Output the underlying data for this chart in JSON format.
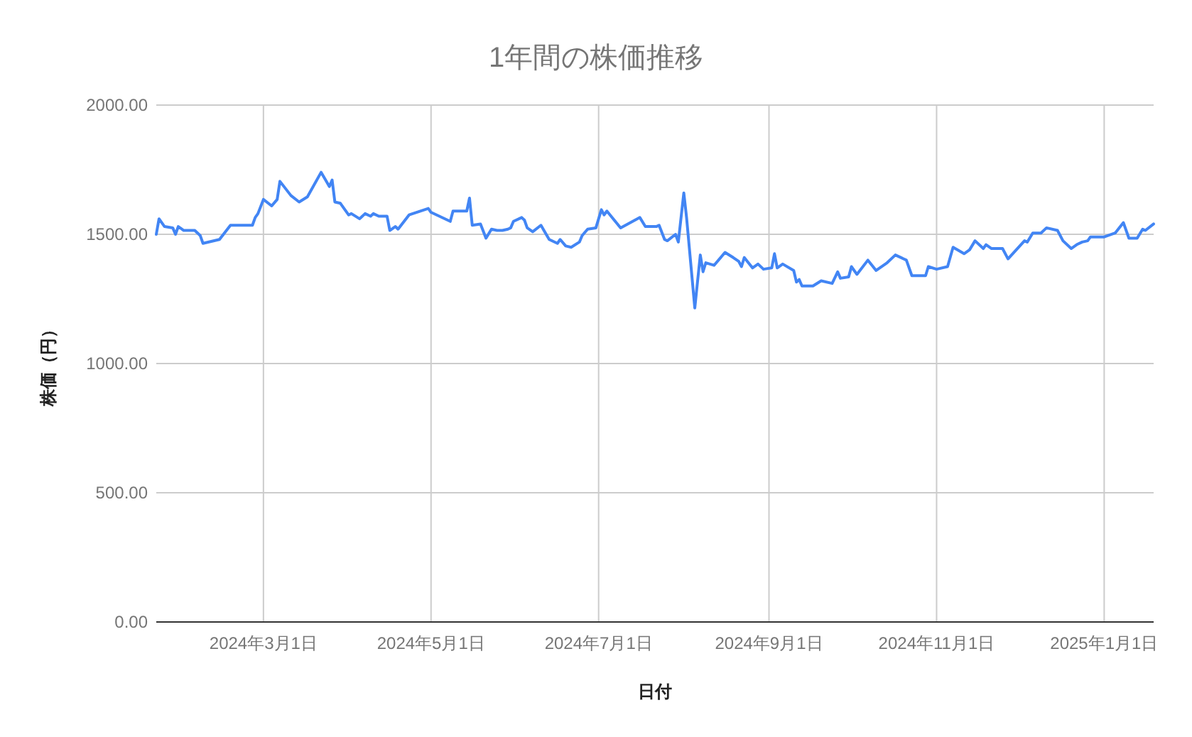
{
  "chart_data": {
    "type": "line",
    "title": "1年間の株価推移",
    "xlabel": "日付",
    "ylabel": "株価（円）",
    "x": [
      "2024-01-22",
      "2024-01-23",
      "2024-01-25",
      "2024-01-28",
      "2024-01-29",
      "2024-01-30",
      "2024-02-01",
      "2024-02-05",
      "2024-02-07",
      "2024-02-08",
      "2024-02-14",
      "2024-02-18",
      "2024-02-19",
      "2024-02-26",
      "2024-02-27",
      "2024-02-28",
      "2024-03-01",
      "2024-03-04",
      "2024-03-06",
      "2024-03-07",
      "2024-03-11",
      "2024-03-14",
      "2024-03-17",
      "2024-03-22",
      "2024-03-25",
      "2024-03-26",
      "2024-03-27",
      "2024-03-29",
      "2024-04-01",
      "2024-04-02",
      "2024-04-05",
      "2024-04-07",
      "2024-04-09",
      "2024-04-10",
      "2024-04-12",
      "2024-04-15",
      "2024-04-16",
      "2024-04-18",
      "2024-04-19",
      "2024-04-23",
      "2024-04-30",
      "2024-05-01",
      "2024-05-08",
      "2024-05-09",
      "2024-05-14",
      "2024-05-15",
      "2024-05-16",
      "2024-05-19",
      "2024-05-21",
      "2024-05-23",
      "2024-05-25",
      "2024-05-27",
      "2024-05-29",
      "2024-05-30",
      "2024-05-31",
      "2024-06-03",
      "2024-06-04",
      "2024-06-05",
      "2024-06-07",
      "2024-06-10",
      "2024-06-13",
      "2024-06-16",
      "2024-06-17",
      "2024-06-19",
      "2024-06-21",
      "2024-06-24",
      "2024-06-25",
      "2024-06-27",
      "2024-06-30",
      "2024-07-02",
      "2024-07-03",
      "2024-07-04",
      "2024-07-09",
      "2024-07-16",
      "2024-07-18",
      "2024-07-22",
      "2024-07-23",
      "2024-07-25",
      "2024-07-26",
      "2024-07-29",
      "2024-07-30",
      "2024-08-01",
      "2024-08-02",
      "2024-08-05",
      "2024-08-07",
      "2024-08-08",
      "2024-08-09",
      "2024-08-12",
      "2024-08-16",
      "2024-08-19",
      "2024-08-21",
      "2024-08-22",
      "2024-08-23",
      "2024-08-26",
      "2024-08-28",
      "2024-08-30",
      "2024-09-02",
      "2024-09-03",
      "2024-09-04",
      "2024-09-06",
      "2024-09-10",
      "2024-09-11",
      "2024-09-12",
      "2024-09-13",
      "2024-09-17",
      "2024-09-20",
      "2024-09-24",
      "2024-09-26",
      "2024-09-27",
      "2024-09-30",
      "2024-10-01",
      "2024-10-03",
      "2024-10-07",
      "2024-10-10",
      "2024-10-14",
      "2024-10-17",
      "2024-10-21",
      "2024-10-23",
      "2024-10-28",
      "2024-10-29",
      "2024-11-01",
      "2024-11-05",
      "2024-11-07",
      "2024-11-11",
      "2024-11-13",
      "2024-11-15",
      "2024-11-18",
      "2024-11-19",
      "2024-11-21",
      "2024-11-25",
      "2024-11-27",
      "2024-12-03",
      "2024-12-04",
      "2024-12-06",
      "2024-12-09",
      "2024-12-11",
      "2024-12-15",
      "2024-12-17",
      "2024-12-20",
      "2024-12-22",
      "2024-12-24",
      "2024-12-26",
      "2024-12-27",
      "2025-01-01",
      "2025-01-05",
      "2025-01-08",
      "2025-01-10",
      "2025-01-13",
      "2025-01-15",
      "2025-01-16",
      "2025-01-19"
    ],
    "series": [
      {
        "color": "#4285f4",
        "values": [
          1500,
          1560,
          1530,
          1525,
          1500,
          1530,
          1515,
          1515,
          1495,
          1465,
          1480,
          1535,
          1535,
          1535,
          1565,
          1580,
          1635,
          1610,
          1635,
          1705,
          1650,
          1625,
          1645,
          1740,
          1685,
          1710,
          1625,
          1620,
          1575,
          1580,
          1560,
          1580,
          1570,
          1580,
          1570,
          1570,
          1515,
          1530,
          1520,
          1575,
          1600,
          1585,
          1550,
          1590,
          1590,
          1640,
          1535,
          1540,
          1485,
          1520,
          1515,
          1515,
          1520,
          1525,
          1550,
          1565,
          1555,
          1525,
          1510,
          1535,
          1480,
          1465,
          1480,
          1455,
          1450,
          1470,
          1495,
          1520,
          1525,
          1595,
          1575,
          1590,
          1525,
          1565,
          1530,
          1530,
          1535,
          1480,
          1475,
          1500,
          1470,
          1660,
          1565,
          1215,
          1420,
          1355,
          1390,
          1380,
          1430,
          1410,
          1395,
          1375,
          1410,
          1370,
          1385,
          1365,
          1370,
          1425,
          1370,
          1385,
          1360,
          1315,
          1325,
          1300,
          1300,
          1320,
          1310,
          1355,
          1330,
          1335,
          1375,
          1345,
          1400,
          1360,
          1390,
          1420,
          1400,
          1340,
          1340,
          1375,
          1365,
          1375,
          1450,
          1425,
          1440,
          1475,
          1445,
          1460,
          1445,
          1445,
          1405,
          1475,
          1470,
          1505,
          1505,
          1525,
          1515,
          1475,
          1445,
          1460,
          1470,
          1475,
          1490,
          1490,
          1505,
          1545,
          1485,
          1485,
          1520,
          1515,
          1540
        ]
      }
    ],
    "xlim": [
      "2024-01-22",
      "2025-01-19"
    ],
    "xticks": [
      {
        "value": "2024-03-01",
        "label": "2024年3月1日"
      },
      {
        "value": "2024-05-01",
        "label": "2024年5月1日"
      },
      {
        "value": "2024-07-01",
        "label": "2024年7月1日"
      },
      {
        "value": "2024-09-01",
        "label": "2024年9月1日"
      },
      {
        "value": "2024-11-01",
        "label": "2024年11月1日"
      },
      {
        "value": "2025-01-01",
        "label": "2025年1月1日"
      }
    ],
    "ylim": [
      0,
      2000
    ],
    "yticks": [
      {
        "value": 0,
        "label": "0.00"
      },
      {
        "value": 500,
        "label": "500.00"
      },
      {
        "value": 1000,
        "label": "1000.00"
      },
      {
        "value": 1500,
        "label": "1500.00"
      },
      {
        "value": 2000,
        "label": "2000.00"
      }
    ],
    "grid": true
  }
}
